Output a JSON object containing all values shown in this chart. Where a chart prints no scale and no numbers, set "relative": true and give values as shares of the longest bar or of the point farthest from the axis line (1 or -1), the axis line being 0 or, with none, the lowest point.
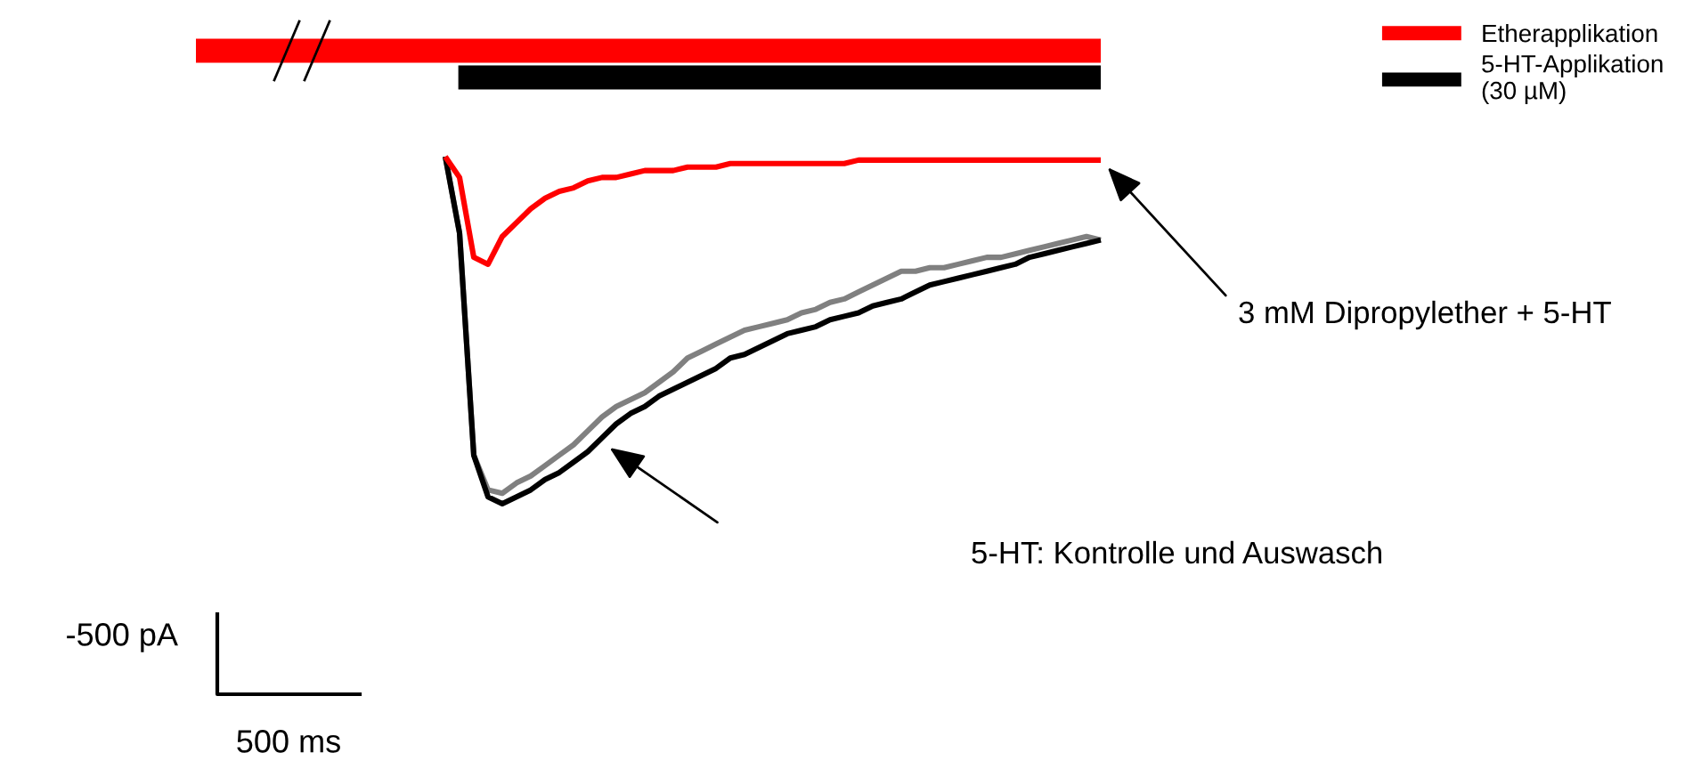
{
  "chart_data": [
    {
      "type": "bar",
      "orientation": "horizontal",
      "relative": true,
      "legend": "right",
      "stacked": true,
      "categories": [
        null,
        null
      ],
      "series": [
        {
          "name": "Etherapplikation",
          "color": "#ff0000",
          "values": [
            1,
            null
          ]
        },
        {
          "name": "5-HT-Applikation\n(30 µM)",
          "color": "#000000",
          "values": [
            null,
            0.71
          ]
        }
      ]
    },
    {
      "type": "line",
      "relative": true,
      "marker": "none",
      "line_style": "solid",
      "categories": [
        null,
        null,
        null,
        null,
        null,
        null,
        null,
        null,
        null,
        null,
        null,
        null,
        null,
        null,
        null,
        null,
        null,
        null,
        null,
        null,
        null,
        null,
        null,
        null,
        null,
        null,
        null,
        null,
        null,
        null,
        null,
        null,
        null,
        null,
        null,
        null,
        null,
        null,
        null,
        null,
        null,
        null,
        null,
        null,
        null,
        null,
        null
      ],
      "series": [
        {
          "color": "#808080",
          "values": [
            1.0,
            0.78,
            0.14,
            0.04,
            0.03,
            0.06,
            0.08,
            0.11,
            0.14,
            0.17,
            0.21,
            0.25,
            0.28,
            0.3,
            0.32,
            0.35,
            0.38,
            0.42,
            0.44,
            0.46,
            0.48,
            0.5,
            0.51,
            0.52,
            0.53,
            0.55,
            0.56,
            0.58,
            0.59,
            0.61,
            0.63,
            0.65,
            0.67,
            0.67,
            0.68,
            0.68,
            0.69,
            0.7,
            0.71,
            0.71,
            0.72,
            0.73,
            0.74,
            0.75,
            0.76,
            0.77,
            0.76
          ]
        },
        {
          "color": "#000000",
          "values": [
            1.0,
            0.78,
            0.14,
            0.02,
            0,
            0.02,
            0.04,
            0.07,
            0.09,
            0.12,
            0.15,
            0.19,
            0.23,
            0.26,
            0.28,
            0.31,
            0.33,
            0.35,
            0.37,
            0.39,
            0.42,
            0.43,
            0.45,
            0.47,
            0.49,
            0.5,
            0.51,
            0.53,
            0.54,
            0.55,
            0.57,
            0.58,
            0.59,
            0.61,
            0.63,
            0.64,
            0.65,
            0.66,
            0.67,
            0.68,
            0.69,
            0.71,
            0.72,
            0.73,
            0.74,
            0.75,
            0.76
          ]
        },
        {
          "color": "#ff0000",
          "values": [
            1.0,
            0.94,
            0.71,
            0.69,
            0.77,
            0.81,
            0.85,
            0.88,
            0.9,
            0.91,
            0.93,
            0.94,
            0.94,
            0.95,
            0.96,
            0.96,
            0.96,
            0.97,
            0.97,
            0.97,
            0.98,
            0.98,
            0.98,
            0.98,
            0.98,
            0.98,
            0.98,
            0.98,
            0.98,
            0.99,
            0.99,
            0.99,
            0.99,
            0.99,
            0.99,
            0.99,
            0.99,
            0.99,
            0.99,
            0.99,
            0.99,
            0.99,
            0.99,
            0.99,
            0.99,
            0.99,
            0.99
          ]
        }
      ],
      "annotations": [
        "3 mM Dipropylether + 5-HT",
        "5-HT: Kontrolle und Auswasch",
        "-500 pA",
        "500 ms"
      ]
    }
  ]
}
